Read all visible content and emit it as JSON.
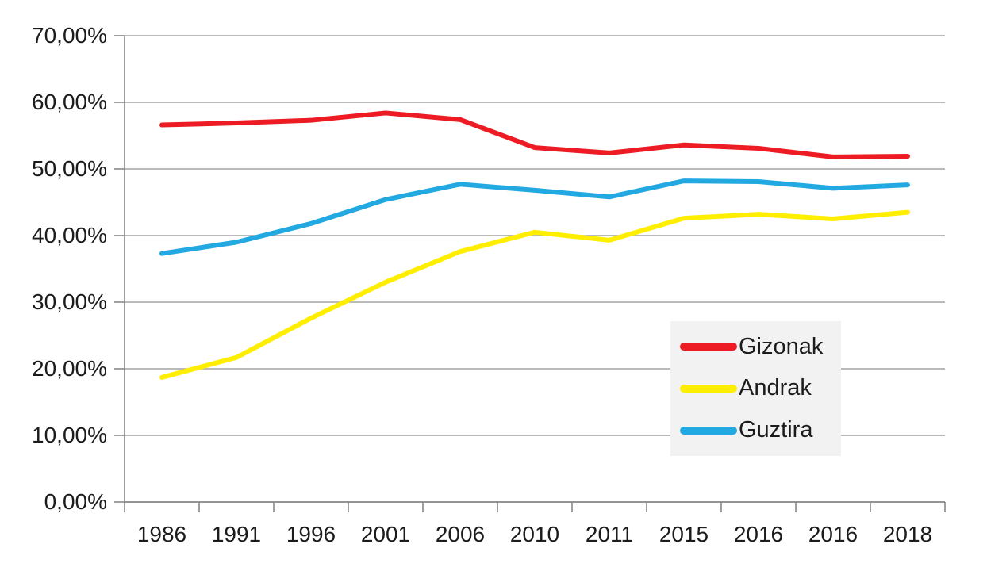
{
  "chart_data": {
    "type": "line",
    "title": "",
    "xlabel": "",
    "ylabel": "",
    "categories": [
      "1986",
      "1991",
      "1996",
      "2001",
      "2006",
      "2010",
      "2011",
      "2015",
      "2016",
      "2016",
      "2018"
    ],
    "series": [
      {
        "name": "Gizonak",
        "color": "#ed1c24",
        "values": [
          56.6,
          56.9,
          57.3,
          58.4,
          57.4,
          53.2,
          52.4,
          53.6,
          53.1,
          51.8,
          51.9
        ]
      },
      {
        "name": "Andrak",
        "color": "#ffee00",
        "values": [
          18.7,
          21.7,
          27.6,
          33.0,
          37.6,
          40.5,
          39.3,
          42.6,
          43.2,
          42.5,
          43.5
        ]
      },
      {
        "name": "Guztira",
        "color": "#23a9e1",
        "values": [
          37.3,
          39.0,
          41.8,
          45.4,
          47.7,
          46.8,
          45.8,
          48.2,
          48.1,
          47.1,
          47.6
        ]
      }
    ],
    "y_axis": {
      "min": 0,
      "max": 70,
      "tick_values": [
        0,
        10,
        20,
        30,
        40,
        50,
        60,
        70
      ],
      "tick_labels": [
        "0,00%",
        "10,00%",
        "20,00%",
        "30,00%",
        "40,00%",
        "50,00%",
        "60,00%",
        "70,00%"
      ]
    },
    "grid": true,
    "legend_position": "inside-right",
    "colors": {
      "background": "#ffffff",
      "gridline": "#a3a3a3",
      "axis": "#808080",
      "text": "#1c1c1c",
      "legend_background": "#f2f2f2"
    }
  }
}
